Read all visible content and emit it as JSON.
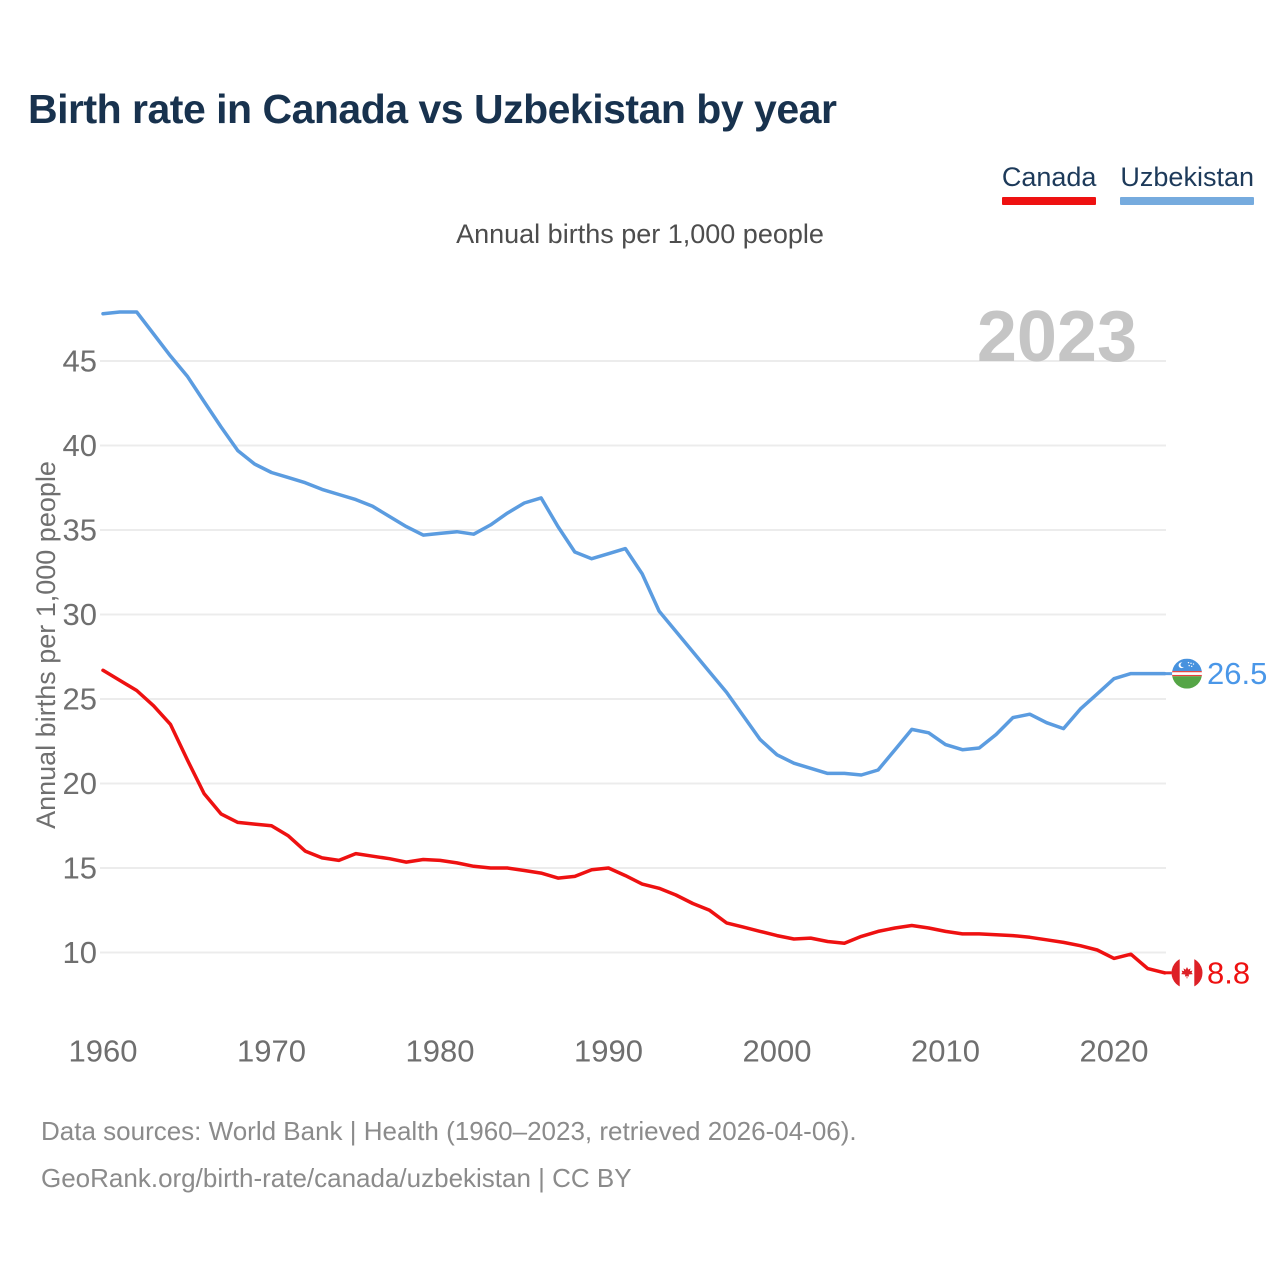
{
  "title": "Birth rate in Canada vs Uzbekistan by year",
  "subtitle": "Annual births per 1,000 people",
  "watermark": "2023",
  "legend": [
    {
      "label": "Canada",
      "color": "#ee1111"
    },
    {
      "label": "Uzbekistan",
      "color": "#76abde"
    }
  ],
  "y_axis": {
    "title": "Annual births per 1,000 people"
  },
  "footer": {
    "line1": "Data sources: World Bank | Health (1960–2023, retrieved 2026-04-06).",
    "line2": "GeoRank.org/birth-rate/canada/uzbekistan | CC BY"
  },
  "end_labels": [
    {
      "series": "Uzbekistan",
      "value": "26.5",
      "flag": "uzbekistan-flag"
    },
    {
      "series": "Canada",
      "value": "8.8",
      "flag": "canada-flag"
    }
  ],
  "chart_data": {
    "type": "line",
    "title": "Birth rate in Canada vs Uzbekistan by year",
    "subtitle": "Annual births per 1,000 people",
    "xlabel": "",
    "ylabel": "Annual births per 1,000 people",
    "xlim": [
      1960,
      2023
    ],
    "ylim": [
      8,
      49
    ],
    "grid": "horizontal",
    "legend_position": "top-right",
    "x_ticks": [
      1960,
      1970,
      1980,
      1990,
      2000,
      2010,
      2020
    ],
    "y_ticks": [
      10,
      15,
      20,
      25,
      30,
      35,
      40,
      45
    ],
    "x": [
      1960,
      1961,
      1962,
      1963,
      1964,
      1965,
      1966,
      1967,
      1968,
      1969,
      1970,
      1971,
      1972,
      1973,
      1974,
      1975,
      1976,
      1977,
      1978,
      1979,
      1980,
      1981,
      1982,
      1983,
      1984,
      1985,
      1986,
      1987,
      1988,
      1989,
      1990,
      1991,
      1992,
      1993,
      1994,
      1995,
      1996,
      1997,
      1998,
      1999,
      2000,
      2001,
      2002,
      2003,
      2004,
      2005,
      2006,
      2007,
      2008,
      2009,
      2010,
      2011,
      2012,
      2013,
      2014,
      2015,
      2016,
      2017,
      2018,
      2019,
      2020,
      2021,
      2022,
      2023
    ],
    "series": [
      {
        "name": "Canada",
        "color": "#ee1111",
        "end_value_label": "8.8",
        "values": [
          26.7,
          26.1,
          25.5,
          24.6,
          23.5,
          21.4,
          19.4,
          18.2,
          17.7,
          17.6,
          17.5,
          16.9,
          16.0,
          15.6,
          15.45,
          15.85,
          15.7,
          15.55,
          15.35,
          15.5,
          15.45,
          15.3,
          15.1,
          15.0,
          15.0,
          14.85,
          14.7,
          14.4,
          14.5,
          14.9,
          15.0,
          14.55,
          14.05,
          13.8,
          13.4,
          12.9,
          12.5,
          11.75,
          11.5,
          11.25,
          11.0,
          10.8,
          10.85,
          10.65,
          10.55,
          10.95,
          11.25,
          11.45,
          11.6,
          11.45,
          11.25,
          11.1,
          11.1,
          11.05,
          11.0,
          10.9,
          10.75,
          10.6,
          10.4,
          10.15,
          9.65,
          9.9,
          9.05,
          8.8
        ]
      },
      {
        "name": "Uzbekistan",
        "color": "#5b9ce0",
        "end_value_label": "26.5",
        "values": [
          47.8,
          47.9,
          47.9,
          46.6,
          45.3,
          44.1,
          42.6,
          41.1,
          39.7,
          38.9,
          38.4,
          38.1,
          37.8,
          37.4,
          37.1,
          36.8,
          36.4,
          35.8,
          35.2,
          34.7,
          34.8,
          34.9,
          34.75,
          35.3,
          36.0,
          36.6,
          36.9,
          35.2,
          33.7,
          33.3,
          33.6,
          33.9,
          32.4,
          30.2,
          29.0,
          27.8,
          26.6,
          25.4,
          24.0,
          22.6,
          21.7,
          21.2,
          20.9,
          20.6,
          20.6,
          20.5,
          20.8,
          22.0,
          23.2,
          23.0,
          22.3,
          22.0,
          22.1,
          22.9,
          23.9,
          24.1,
          23.6,
          23.25,
          24.4,
          25.3,
          26.2,
          26.5,
          26.5,
          26.5
        ]
      }
    ],
    "watermark": "2023"
  }
}
